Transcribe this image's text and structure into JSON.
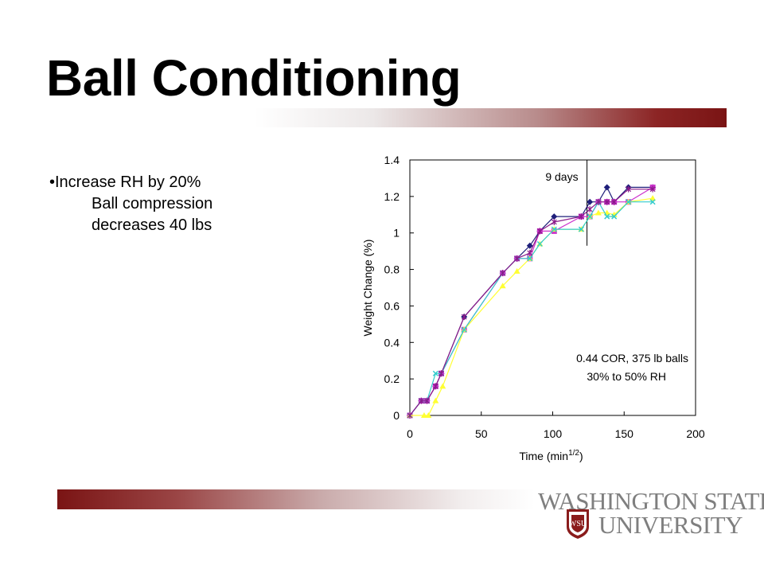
{
  "slide": {
    "title": "Ball Conditioning",
    "bullets": {
      "main": "•Increase RH by 20%",
      "sub1": "Ball compression",
      "sub2": "decreases 40 lbs"
    },
    "logo": {
      "line1": "WASHINGTON STATE",
      "line2": "UNIVERSITY",
      "seal": "WSU"
    }
  },
  "colors": {
    "accent": "#7a1414",
    "series": [
      "#1f1f7a",
      "#cc33cc",
      "#ffff33",
      "#33cccc",
      "#8b1a8b"
    ]
  },
  "chart_data": {
    "type": "line",
    "xlabel": "Time (min",
    "xlabel_sup": "1/2",
    "xlabel_end": ")",
    "ylabel": "Weight Change (%)",
    "xlim": [
      0,
      200
    ],
    "ylim": [
      0,
      1.4
    ],
    "xticks": [
      "0",
      "50",
      "100",
      "150",
      "200"
    ],
    "yticks": [
      "0",
      "0.2",
      "0.4",
      "0.6",
      "0.8",
      "1",
      "1.2",
      "1.4"
    ],
    "xtick_values": [
      0,
      50,
      100,
      150,
      200
    ],
    "ytick_values": [
      0,
      0.2,
      0.4,
      0.6,
      0.8,
      1,
      1.2,
      1.4
    ],
    "grid": false,
    "annotations": {
      "vline_label": "9 days",
      "vline_x": 124,
      "note_line1": "0.44 COR, 375 lb balls",
      "note_line2": "30% to 50% RH"
    },
    "series": [
      {
        "marker": "diamond",
        "x": [
          0,
          8,
          12,
          18,
          22,
          38,
          65,
          75,
          84,
          91,
          101,
          120,
          126,
          132,
          138,
          143,
          153,
          170
        ],
        "y": [
          0,
          0.08,
          0.08,
          0.16,
          0.23,
          0.54,
          0.78,
          0.86,
          0.93,
          1.01,
          1.09,
          1.09,
          1.17,
          1.17,
          1.25,
          1.17,
          1.25,
          1.25
        ]
      },
      {
        "marker": "square",
        "x": [
          0,
          8,
          12,
          18,
          22,
          38,
          65,
          75,
          84,
          91,
          101,
          120,
          126,
          132,
          138,
          143,
          153,
          170
        ],
        "y": [
          0,
          0.08,
          0.08,
          0.16,
          0.23,
          0.47,
          0.78,
          0.86,
          0.86,
          1.01,
          1.01,
          1.09,
          1.09,
          1.17,
          1.17,
          1.17,
          1.17,
          1.25
        ]
      },
      {
        "marker": "triangle",
        "x": [
          0,
          10,
          13,
          18,
          23,
          38,
          65,
          75,
          84,
          91,
          101,
          120,
          126,
          132,
          138,
          143,
          153,
          170
        ],
        "y": [
          0,
          0,
          0,
          0.08,
          0.16,
          0.47,
          0.71,
          0.79,
          0.86,
          0.94,
          1.02,
          1.02,
          1.09,
          1.11,
          1.11,
          1.1,
          1.17,
          1.19
        ]
      },
      {
        "marker": "x",
        "x": [
          0,
          8,
          12,
          18,
          22,
          38,
          65,
          75,
          84,
          91,
          101,
          120,
          126,
          132,
          138,
          143,
          153,
          170
        ],
        "y": [
          0,
          0.08,
          0.08,
          0.23,
          0.23,
          0.47,
          0.78,
          0.86,
          0.86,
          0.94,
          1.02,
          1.02,
          1.09,
          1.17,
          1.09,
          1.09,
          1.17,
          1.17
        ]
      },
      {
        "marker": "star",
        "x": [
          0,
          8,
          12,
          18,
          22,
          38,
          65,
          75,
          84,
          91,
          101,
          120,
          126,
          132,
          138,
          143,
          153,
          170
        ],
        "y": [
          0,
          0.08,
          0.08,
          0.16,
          0.23,
          0.54,
          0.78,
          0.86,
          0.89,
          1.01,
          1.06,
          1.09,
          1.13,
          1.17,
          1.17,
          1.17,
          1.24,
          1.24
        ]
      }
    ]
  }
}
